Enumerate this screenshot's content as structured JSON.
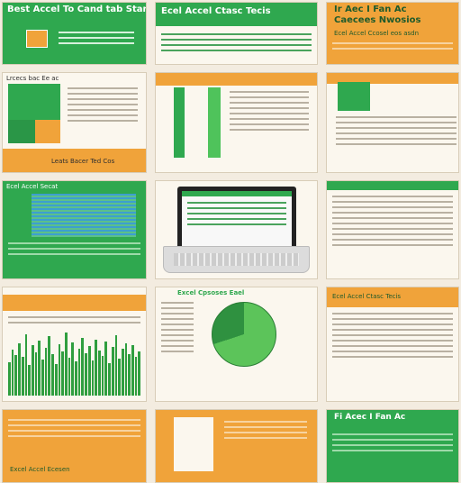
{
  "tiles": {
    "t1": {
      "title": "Best Accel To Cand tab Star"
    },
    "t2": {
      "title": "Ecel Accel Ctasc Tecis"
    },
    "t3": {
      "title": "Ir Aec I Fan Ac",
      "subtitle": "Caecees Nwosios",
      "caption": "Ecel Accel Ccosel eos asdn"
    },
    "t4": {
      "title": "Lrcecs bac Ee ac"
    },
    "t5": {
      "caption": "Leats Bacer Ted Cos"
    },
    "t6": {
      "caption": "Ecel Accel Secat"
    },
    "t8": {
      "caption": "Excel Cpsoses Eael"
    },
    "t10": {
      "title": "Ecel Accel Ctasc Tecis"
    },
    "t11": {
      "caption": "Excel Accel Ecesen"
    },
    "t12": {
      "title": "Fi Acec I Fan Ac"
    }
  },
  "colors": {
    "green": "#2fa84f",
    "orange": "#f0a33a",
    "cream": "#fbf7ee"
  },
  "chart_data": [
    {
      "type": "bar",
      "values": [
        38,
        52,
        46,
        60,
        44,
        70,
        35,
        58,
        49,
        63,
        41,
        55,
        68,
        47,
        36,
        59,
        50,
        72,
        43,
        61,
        39,
        54,
        66,
        48,
        57,
        40,
        64,
        51,
        45,
        62,
        37,
        56,
        69,
        42,
        53,
        60,
        47,
        58,
        44,
        50
      ]
    },
    {
      "type": "pie",
      "values": [
        70,
        30
      ]
    }
  ]
}
